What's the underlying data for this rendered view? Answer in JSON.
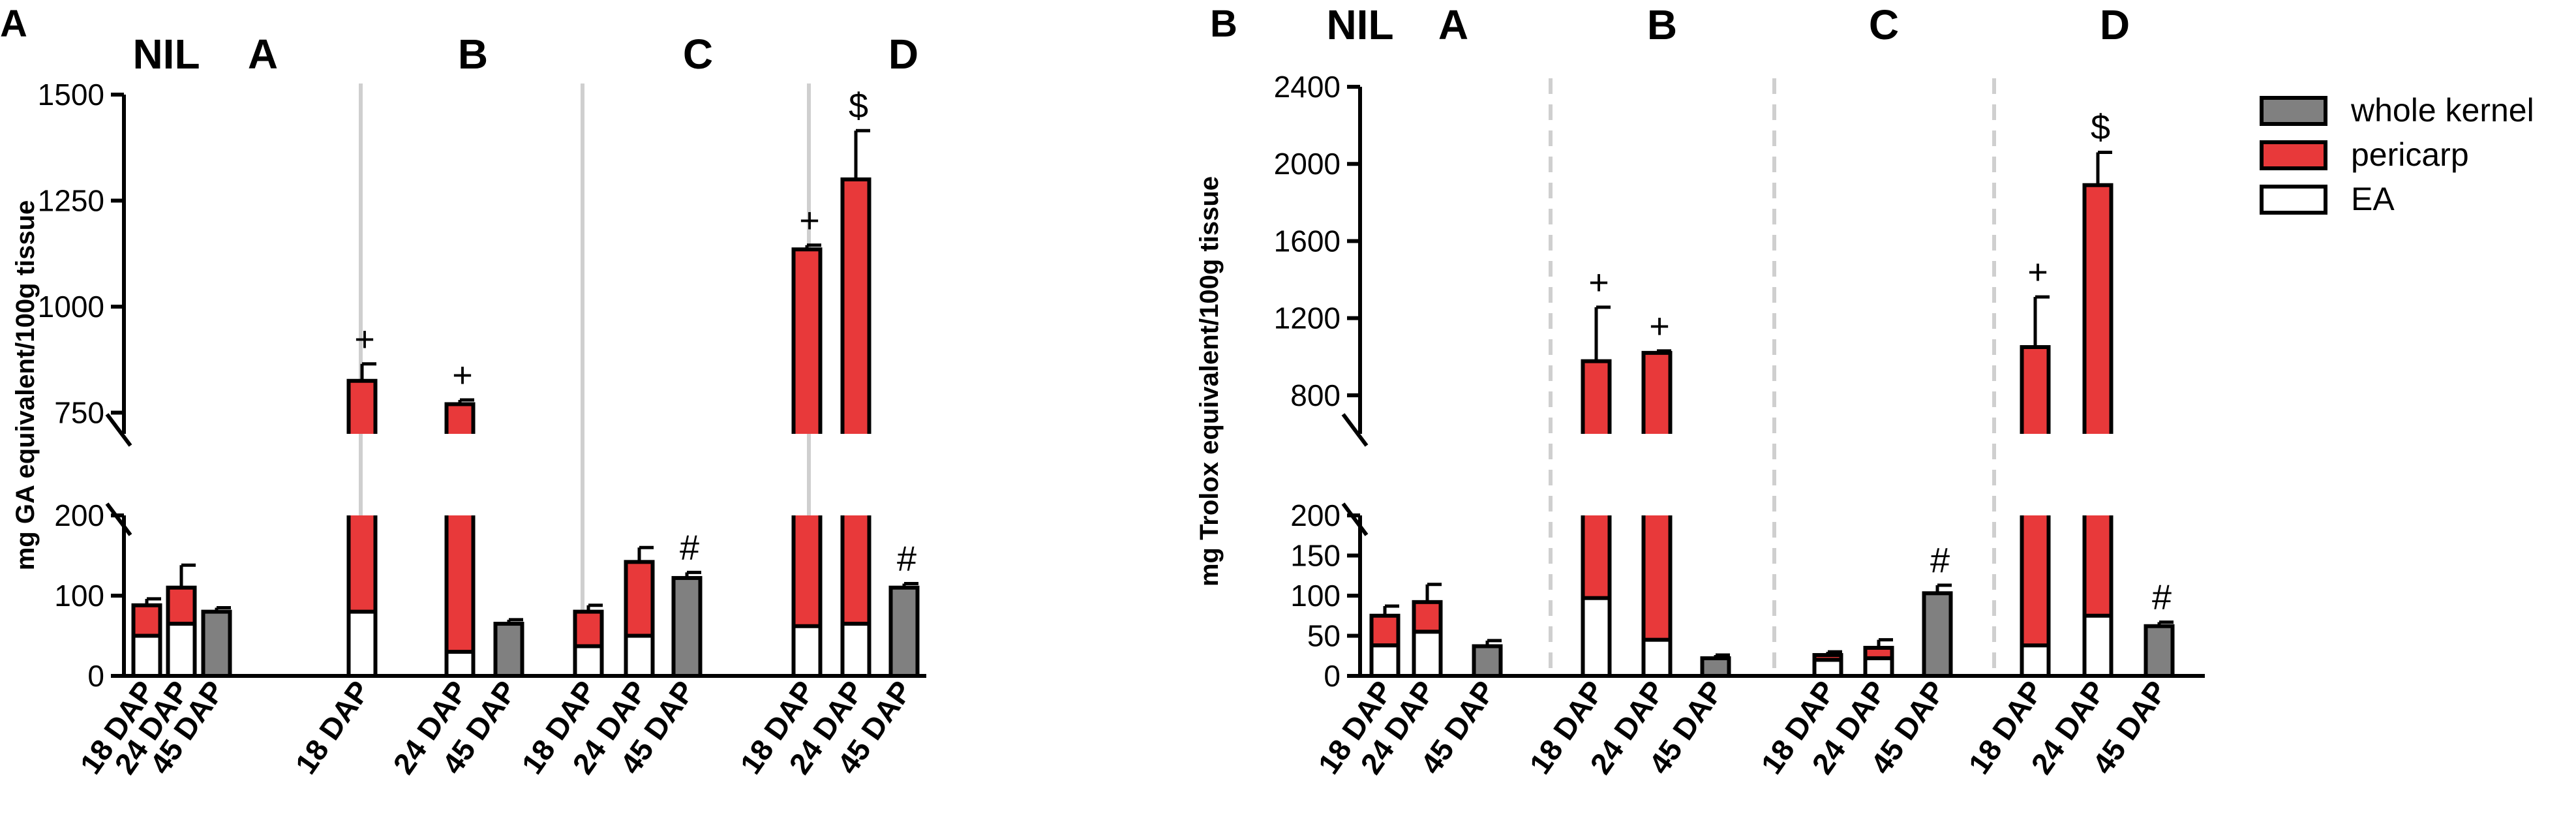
{
  "legend": {
    "entries": [
      {
        "label": "whole kernel",
        "color": "#808080"
      },
      {
        "label": "pericarp",
        "color": "#e8393a"
      },
      {
        "label": "EA",
        "color": "#ffffff"
      }
    ]
  },
  "chart_data": [
    {
      "type": "bar",
      "stacked": true,
      "panel_label": "A",
      "ylabel": "mg GA equivalent/100g tissue",
      "axis_break": true,
      "y_lower_segment": {
        "range": [
          0,
          200
        ],
        "ticks": [
          0,
          100,
          200
        ]
      },
      "y_upper_segment": {
        "range": [
          700,
          1500
        ],
        "ticks": [
          750,
          1000,
          1250,
          1500
        ]
      },
      "separator_style": "solid",
      "group_labels": [
        "NIL",
        "A",
        "B",
        "C",
        "D"
      ],
      "groups": [
        {
          "name": "A",
          "bars": [
            {
              "category": "18 DAP",
              "EA": 50,
              "pericarp": 38,
              "whole_kernel": null,
              "error": 8
            },
            {
              "category": "24 DAP",
              "EA": 65,
              "pericarp": 45,
              "whole_kernel": null,
              "error": 28
            },
            {
              "category": "45 DAP",
              "EA": null,
              "pericarp": null,
              "whole_kernel": 80,
              "error": 5
            }
          ]
        },
        {
          "name": "B",
          "bars": [
            {
              "category": "18 DAP",
              "EA": 80,
              "pericarp": 745,
              "whole_kernel": null,
              "error": 40,
              "annotation": "+"
            },
            {
              "category": "24 DAP",
              "EA": 30,
              "pericarp": 740,
              "whole_kernel": null,
              "error": 10,
              "annotation": "+"
            },
            {
              "category": "45 DAP",
              "EA": null,
              "pericarp": null,
              "whole_kernel": 65,
              "error": 5
            }
          ]
        },
        {
          "name": "C",
          "bars": [
            {
              "category": "18 DAP",
              "EA": 37,
              "pericarp": 43,
              "whole_kernel": null,
              "error": 8
            },
            {
              "category": "24 DAP",
              "EA": 50,
              "pericarp": 92,
              "whole_kernel": null,
              "error": 18
            },
            {
              "category": "45 DAP",
              "EA": null,
              "pericarp": null,
              "whole_kernel": 122,
              "error": 7,
              "annotation": "#"
            }
          ]
        },
        {
          "name": "D",
          "bars": [
            {
              "category": "18 DAP",
              "EA": 62,
              "pericarp": 1073,
              "whole_kernel": null,
              "error": 10,
              "annotation": "+"
            },
            {
              "category": "24 DAP",
              "EA": 65,
              "pericarp": 1235,
              "whole_kernel": null,
              "error": 115,
              "annotation": "$"
            },
            {
              "category": "45 DAP",
              "EA": null,
              "pericarp": null,
              "whole_kernel": 110,
              "error": 5,
              "annotation": "#"
            }
          ]
        }
      ]
    },
    {
      "type": "bar",
      "stacked": true,
      "panel_label": "B",
      "ylabel": "mg Trolox equivalent/100g tissue",
      "axis_break": true,
      "y_lower_segment": {
        "range": [
          0,
          200
        ],
        "ticks": [
          0,
          50,
          100,
          150,
          200
        ]
      },
      "y_upper_segment": {
        "range": [
          600,
          2400
        ],
        "ticks": [
          800,
          1200,
          1600,
          2000,
          2400
        ]
      },
      "separator_style": "dashed",
      "group_labels": [
        "NIL",
        "A",
        "B",
        "C",
        "D"
      ],
      "groups": [
        {
          "name": "A",
          "bars": [
            {
              "category": "18 DAP",
              "EA": 38,
              "pericarp": 37,
              "whole_kernel": null,
              "error": 12
            },
            {
              "category": "24 DAP",
              "EA": 55,
              "pericarp": 37,
              "whole_kernel": null,
              "error": 22
            },
            {
              "category": "45 DAP",
              "EA": null,
              "pericarp": null,
              "whole_kernel": 37,
              "error": 7
            }
          ]
        },
        {
          "name": "B",
          "bars": [
            {
              "category": "18 DAP",
              "EA": 97,
              "pericarp": 880,
              "whole_kernel": null,
              "error": 280,
              "annotation": "+"
            },
            {
              "category": "24 DAP",
              "EA": 45,
              "pericarp": 975,
              "whole_kernel": null,
              "error": 10,
              "annotation": "+"
            },
            {
              "category": "45 DAP",
              "EA": null,
              "pericarp": null,
              "whole_kernel": 22,
              "error": 4
            }
          ]
        },
        {
          "name": "C",
          "bars": [
            {
              "category": "18 DAP",
              "EA": 20,
              "pericarp": 6,
              "whole_kernel": null,
              "error": 4
            },
            {
              "category": "24 DAP",
              "EA": 22,
              "pericarp": 13,
              "whole_kernel": null,
              "error": 10
            },
            {
              "category": "45 DAP",
              "EA": null,
              "pericarp": null,
              "whole_kernel": 103,
              "error": 10,
              "annotation": "#"
            }
          ]
        },
        {
          "name": "D",
          "bars": [
            {
              "category": "18 DAP",
              "EA": 38,
              "pericarp": 1012,
              "whole_kernel": null,
              "error": 260,
              "annotation": "+"
            },
            {
              "category": "24 DAP",
              "EA": 75,
              "pericarp": 1815,
              "whole_kernel": null,
              "error": 170,
              "annotation": "$"
            },
            {
              "category": "45 DAP",
              "EA": null,
              "pericarp": null,
              "whole_kernel": 62,
              "error": 5,
              "annotation": "#"
            }
          ]
        }
      ]
    }
  ]
}
